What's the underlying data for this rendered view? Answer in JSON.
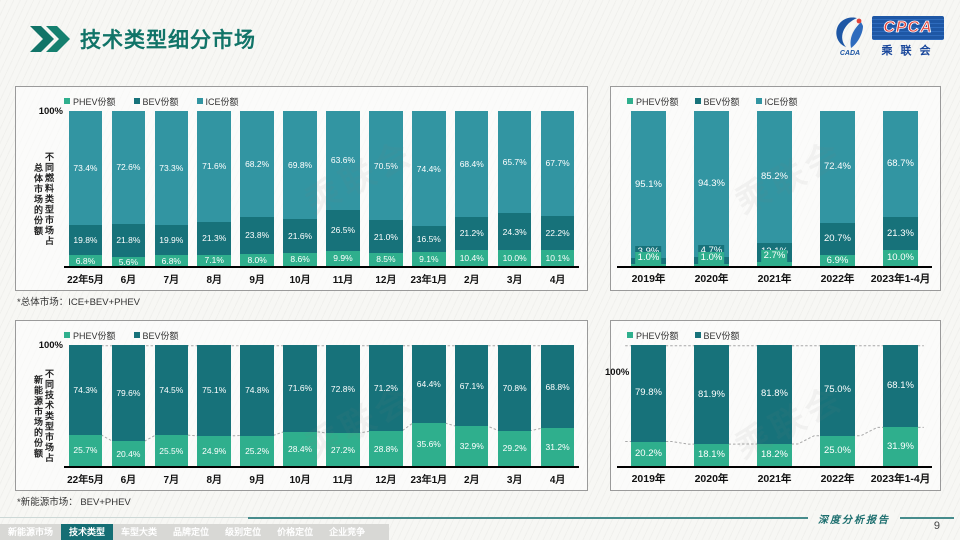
{
  "header": {
    "title": "技术类型细分市场",
    "logo": {
      "acronym": "CPCA",
      "small": "CADA",
      "subtitle": "乘联会"
    }
  },
  "watermark": "乘联会",
  "colors": {
    "phev": "#2FAF8D",
    "bev": "#17727A",
    "ice": "#3295A2",
    "accent": "#156E74"
  },
  "footnotes": {
    "overall": "*总体市场：ICE+BEV+PHEV",
    "nev": "*新能源市场：  BEV+PHEV"
  },
  "footer": {
    "report_label": "深度分析报告",
    "page_number": "9",
    "tabs": [
      {
        "label": "新能源市场",
        "active": false
      },
      {
        "label": "技术类型",
        "active": true
      },
      {
        "label": "车型大类",
        "active": false
      },
      {
        "label": "品牌定位",
        "active": false
      },
      {
        "label": "级别定位",
        "active": false
      },
      {
        "label": "价格定位",
        "active": false
      },
      {
        "label": "企业竞争",
        "active": false
      }
    ]
  },
  "chart_data": [
    {
      "id": "fuel-share-of-total-monthly",
      "type": "bar",
      "stacked": true,
      "ylim": [
        0,
        100
      ],
      "y_max_label": "100%",
      "y_axis_title_lines": [
        "不同燃料类型市场占",
        "总体市场的份额"
      ],
      "legend_position": "top",
      "grid": false,
      "categories": [
        "22年5月",
        "6月",
        "7月",
        "8月",
        "9月",
        "10月",
        "11月",
        "12月",
        "23年1月",
        "2月",
        "3月",
        "4月"
      ],
      "series": [
        {
          "name": "PHEV份额",
          "color_key": "phev",
          "values": [
            6.8,
            5.6,
            6.8,
            7.1,
            8.0,
            8.6,
            9.9,
            8.5,
            9.1,
            10.4,
            10.0,
            10.1
          ]
        },
        {
          "name": "BEV份额",
          "color_key": "bev",
          "values": [
            19.8,
            21.8,
            19.9,
            21.3,
            23.8,
            21.6,
            26.5,
            21.0,
            16.5,
            21.2,
            24.3,
            22.2
          ]
        },
        {
          "name": "ICE份额",
          "color_key": "ice",
          "values": [
            73.4,
            72.6,
            73.3,
            71.6,
            68.2,
            69.8,
            63.6,
            70.5,
            74.4,
            68.4,
            65.7,
            67.7
          ]
        }
      ]
    },
    {
      "id": "fuel-share-of-total-yearly",
      "type": "bar",
      "stacked": true,
      "ylim": [
        0,
        100
      ],
      "legend_position": "top",
      "grid": false,
      "categories": [
        "2019年",
        "2020年",
        "2021年",
        "2022年",
        "2023年1-4月"
      ],
      "series": [
        {
          "name": "PHEV份额",
          "color_key": "phev",
          "values": [
            1.0,
            1.0,
            2.7,
            6.9,
            10.0
          ]
        },
        {
          "name": "BEV份额",
          "color_key": "bev",
          "values": [
            3.9,
            4.7,
            12.1,
            20.7,
            21.3
          ]
        },
        {
          "name": "ICE份额",
          "color_key": "ice",
          "values": [
            95.1,
            94.3,
            85.2,
            72.4,
            68.7
          ]
        }
      ]
    },
    {
      "id": "tech-share-of-nev-monthly",
      "type": "bar",
      "stacked": true,
      "ylim": [
        0,
        100
      ],
      "y_max_label": "100%",
      "y_axis_title_lines": [
        "不同技术类型市场占",
        "新能源市场的份额"
      ],
      "legend_position": "top",
      "grid": false,
      "dashed_guides": true,
      "categories": [
        "22年5月",
        "6月",
        "7月",
        "8月",
        "9月",
        "10月",
        "11月",
        "12月",
        "23年1月",
        "2月",
        "3月",
        "4月"
      ],
      "series": [
        {
          "name": "PHEV份额",
          "color_key": "phev",
          "values": [
            25.7,
            20.4,
            25.5,
            24.9,
            25.2,
            28.4,
            27.2,
            28.8,
            35.6,
            32.9,
            29.2,
            31.2
          ]
        },
        {
          "name": "BEV份额",
          "color_key": "bev",
          "values": [
            74.3,
            79.6,
            74.5,
            75.1,
            74.8,
            71.6,
            72.8,
            71.2,
            64.4,
            67.1,
            70.8,
            68.8
          ]
        }
      ]
    },
    {
      "id": "tech-share-of-nev-yearly",
      "type": "bar",
      "stacked": true,
      "ylim": [
        0,
        100
      ],
      "y_max_label": "100%",
      "legend_position": "top",
      "grid": false,
      "dashed_guides": true,
      "categories": [
        "2019年",
        "2020年",
        "2021年",
        "2022年",
        "2023年1-4月"
      ],
      "series": [
        {
          "name": "PHEV份额",
          "color_key": "phev",
          "values": [
            20.2,
            18.1,
            18.2,
            25.0,
            31.9
          ]
        },
        {
          "name": "BEV份额",
          "color_key": "bev",
          "values": [
            79.8,
            81.9,
            81.8,
            75.0,
            68.1
          ]
        }
      ]
    }
  ]
}
